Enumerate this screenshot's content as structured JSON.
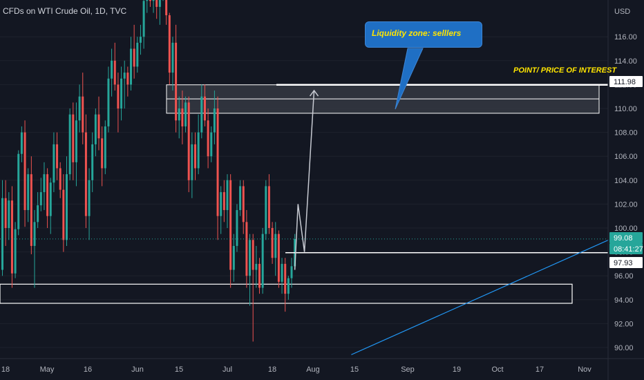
{
  "header": {
    "symbol": "CFDs on WTI Crude Oil, 1D, TVC"
  },
  "annotations": {
    "callout_text": "Liquidity zone: selllers",
    "poi_text": "POINT/ PRICE OF INTEREST"
  },
  "colors": {
    "background": "#131722",
    "up": "#26a69a",
    "down": "#ef5350",
    "grid": "#1e222d",
    "text": "#b2b5be",
    "callout": "#1f6fc4",
    "yellow": "#ffe500",
    "trendline": "#2196f3",
    "projection": "#c8cbd3",
    "zone_fill": "#3a3d47"
  },
  "chart_data": {
    "type": "candlestick",
    "title": "CFDs on WTI Crude Oil, 1D, TVC",
    "price_axis": {
      "unit_label": "USD",
      "ticks": [
        "90.00",
        "92.00",
        "94.00",
        "96.00",
        "98.00",
        "100.00",
        "102.00",
        "104.00",
        "106.00",
        "108.00",
        "110.00",
        "112.00",
        "114.00",
        "116.00"
      ]
    },
    "time_axis": {
      "ticks": [
        "18",
        "May",
        "16",
        "Jun",
        "15",
        "Jul",
        "18",
        "Aug",
        "15",
        "Sep",
        "19",
        "Oct",
        "17",
        "Nov"
      ]
    },
    "badges": [
      {
        "label": "111.98",
        "value": 111.98,
        "style": "white"
      },
      {
        "label": "99.08",
        "value": 99.08,
        "style": "green"
      },
      {
        "label": "08:41:27",
        "value": 98.33,
        "style": "green"
      },
      {
        "label": "97.93",
        "value": 97.93,
        "style": "white"
      }
    ],
    "current_price": 99.08,
    "levels": {
      "point_of_interest": 111.98,
      "support": 97.93
    },
    "zones": [
      {
        "name": "sellers liquidity zone",
        "top": 111.98,
        "bottom": 109.6
      },
      {
        "name": "support zone",
        "top": 95.3,
        "bottom": 93.7
      }
    ],
    "series": {
      "ohlc": [
        [
          96.5,
          104.0,
          96.0,
          102.5
        ],
        [
          102.5,
          104.0,
          98.5,
          100.0
        ],
        [
          100.0,
          103.0,
          99.0,
          102.3
        ],
        [
          102.3,
          103.5,
          95.0,
          96.2
        ],
        [
          96.2,
          100.5,
          95.8,
          99.9
        ],
        [
          99.9,
          106.5,
          99.4,
          106.2
        ],
        [
          106.2,
          108.5,
          105.5,
          108.0
        ],
        [
          108.0,
          109.0,
          100.1,
          101.5
        ],
        [
          101.5,
          105.0,
          100.5,
          104.5
        ],
        [
          104.5,
          106.0,
          97.8,
          98.5
        ],
        [
          98.5,
          101.5,
          95.0,
          100.5
        ],
        [
          100.5,
          103.0,
          100.0,
          101.9
        ],
        [
          101.9,
          104.2,
          101.4,
          103.0
        ],
        [
          103.0,
          105.5,
          101.5,
          104.5
        ],
        [
          104.5,
          105.0,
          100.0,
          101.0
        ],
        [
          101.0,
          104.2,
          99.5,
          103.8
        ],
        [
          103.8,
          108.0,
          103.0,
          107.0
        ],
        [
          107.0,
          108.0,
          104.0,
          105.0
        ],
        [
          105.0,
          105.5,
          102.5,
          103.2
        ],
        [
          103.2,
          104.5,
          98.0,
          99.0
        ],
        [
          99.0,
          106.0,
          98.5,
          104.5
        ],
        [
          104.5,
          110.0,
          104.0,
          109.5
        ],
        [
          109.5,
          110.5,
          104.0,
          105.5
        ],
        [
          105.5,
          110.5,
          103.5,
          109.0
        ],
        [
          109.0,
          112.0,
          108.0,
          111.0
        ],
        [
          111.0,
          113.0,
          107.0,
          108.0
        ],
        [
          108.0,
          109.5,
          100.0,
          101.0
        ],
        [
          101.0,
          105.0,
          99.0,
          104.0
        ],
        [
          104.0,
          108.0,
          103.0,
          107.0
        ],
        [
          107.0,
          110.0,
          106.0,
          109.5
        ],
        [
          109.5,
          111.0,
          106.5,
          107.5
        ],
        [
          107.5,
          108.5,
          103.5,
          105.0
        ],
        [
          105.0,
          109.0,
          104.5,
          108.5
        ],
        [
          108.5,
          113.5,
          108.0,
          112.5
        ],
        [
          112.5,
          115.0,
          111.0,
          114.0
        ],
        [
          114.0,
          115.5,
          111.5,
          112.0
        ],
        [
          112.0,
          113.0,
          108.0,
          110.0
        ],
        [
          110.0,
          113.5,
          109.0,
          112.5
        ],
        [
          112.5,
          114.0,
          110.0,
          113.0
        ],
        [
          113.0,
          113.5,
          111.0,
          112.0
        ],
        [
          112.0,
          116.0,
          111.5,
          115.0
        ],
        [
          115.0,
          117.0,
          112.5,
          113.5
        ],
        [
          113.5,
          116.0,
          113.0,
          115.5
        ],
        [
          115.5,
          117.0,
          114.5,
          116.0
        ],
        [
          116.0,
          119.5,
          115.0,
          119.0
        ],
        [
          119.0,
          120.5,
          118.0,
          120.0
        ],
        [
          120.0,
          121.0,
          118.5,
          119.0
        ],
        [
          119.0,
          121.0,
          118.0,
          120.5
        ],
        [
          120.5,
          122.0,
          117.5,
          118.5
        ],
        [
          118.5,
          120.0,
          117.0,
          119.5
        ],
        [
          119.5,
          122.0,
          119.0,
          121.0
        ],
        [
          121.0,
          121.5,
          117.0,
          117.8
        ],
        [
          117.8,
          118.0,
          112.0,
          113.0
        ],
        [
          113.0,
          116.0,
          111.5,
          115.5
        ],
        [
          115.5,
          117.0,
          108.0,
          109.0
        ],
        [
          109.0,
          111.0,
          107.5,
          110.0
        ],
        [
          110.0,
          111.5,
          107.0,
          108.5
        ],
        [
          108.5,
          111.0,
          108.0,
          110.5
        ],
        [
          110.5,
          111.0,
          103.0,
          104.0
        ],
        [
          104.0,
          108.0,
          102.5,
          107.0
        ],
        [
          107.0,
          108.0,
          104.0,
          105.0
        ],
        [
          105.0,
          109.5,
          104.5,
          108.0
        ],
        [
          108.0,
          112.0,
          107.5,
          111.0
        ],
        [
          111.0,
          112.0,
          108.5,
          109.0
        ],
        [
          109.0,
          110.0,
          105.0,
          106.0
        ],
        [
          106.0,
          108.5,
          105.5,
          108.0
        ],
        [
          108.0,
          111.5,
          107.0,
          110.0
        ],
        [
          110.0,
          111.0,
          99.0,
          101.0
        ],
        [
          101.0,
          103.5,
          99.5,
          103.0
        ],
        [
          103.0,
          104.0,
          100.5,
          101.5
        ],
        [
          101.5,
          104.5,
          100.0,
          104.0
        ],
        [
          104.0,
          104.5,
          95.0,
          96.5
        ],
        [
          96.5,
          99.5,
          95.5,
          98.5
        ],
        [
          98.5,
          102.0,
          98.0,
          101.5
        ],
        [
          101.5,
          104.0,
          101.0,
          103.5
        ],
        [
          103.5,
          104.0,
          99.5,
          100.5
        ],
        [
          100.5,
          101.5,
          95.0,
          96.0
        ],
        [
          96.0,
          99.5,
          93.5,
          99.0
        ],
        [
          99.0,
          99.5,
          90.5,
          96.5
        ],
        [
          96.5,
          98.5,
          95.0,
          97.0
        ],
        [
          97.0,
          97.5,
          94.5,
          95.0
        ],
        [
          95.0,
          100.0,
          94.5,
          99.5
        ],
        [
          99.5,
          104.0,
          99.0,
          103.5
        ],
        [
          103.5,
          104.5,
          99.5,
          100.0
        ],
        [
          100.0,
          100.5,
          97.0,
          97.5
        ],
        [
          97.5,
          100.5,
          96.0,
          99.5
        ],
        [
          99.5,
          99.8,
          95.0,
          95.5
        ],
        [
          95.5,
          97.5,
          94.5,
          97.0
        ],
        [
          97.0,
          97.5,
          93.0,
          94.5
        ],
        [
          94.5,
          96.0,
          94.0,
          95.8
        ],
        [
          95.8,
          97.5,
          95.0,
          96.8
        ],
        [
          96.8,
          99.5,
          96.5,
          99.08
        ]
      ]
    },
    "projection_path": [
      {
        "bar": 91,
        "price": 96.5
      },
      {
        "bar": 92,
        "price": 102.0
      },
      {
        "bar": 94,
        "price": 98.0
      },
      {
        "bar": 97,
        "price": 111.5
      }
    ],
    "trendline": [
      {
        "bar": 96,
        "price": 89.4
      },
      {
        "bar": 161,
        "price": 99.0
      }
    ],
    "grid": false
  }
}
